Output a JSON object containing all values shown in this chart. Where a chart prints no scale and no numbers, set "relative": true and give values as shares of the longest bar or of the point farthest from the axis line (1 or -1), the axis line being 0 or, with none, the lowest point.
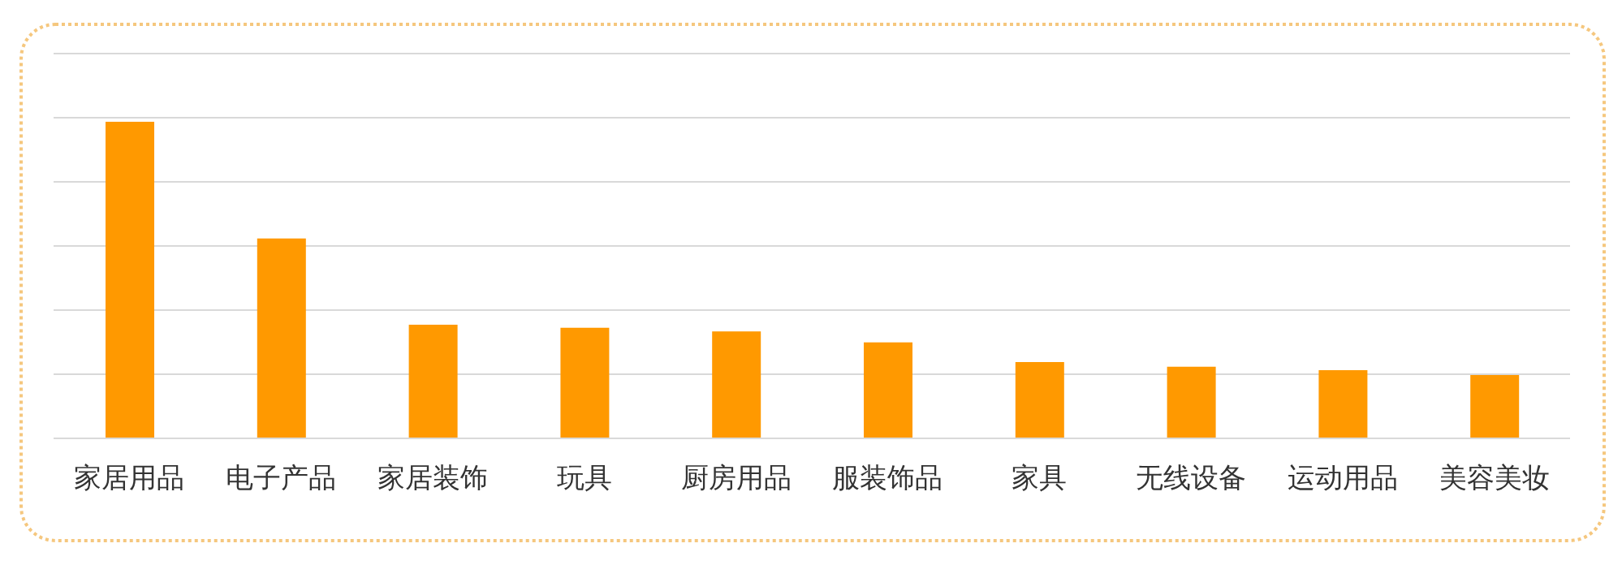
{
  "chart_data": {
    "type": "bar",
    "relative": true,
    "grid": "y",
    "color": "#ff9900",
    "categories": [
      "家居用品",
      "电子产品",
      "家居装饰",
      "玩具",
      "厨房用品",
      "服装饰品",
      "家具",
      "无线设备",
      "运动用品",
      "美容美妆"
    ],
    "values": [
      1,
      0.631,
      0.359,
      0.349,
      0.338,
      0.303,
      0.241,
      0.226,
      0.215,
      0.2
    ]
  }
}
